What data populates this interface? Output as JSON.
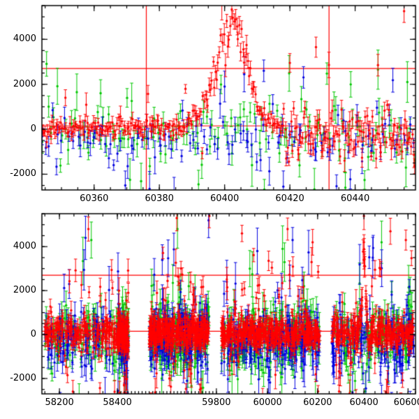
{
  "figure": {
    "background": "#ffffff",
    "axis_color": "#000000",
    "ref_line_color": "#ff0000",
    "tick_label_color": "#000000",
    "description": "Two-panel photometric light curve, flux vs MJD, three bands (red, green, blue) with error bars"
  },
  "chart_data": [
    {
      "type": "scatter",
      "id": "top",
      "x_range": [
        60344,
        60458.5
      ],
      "y_range": [
        -2700,
        5500
      ],
      "x_ticks": [
        60360,
        60380,
        60400,
        60420,
        60440
      ],
      "x_tick_labels": [
        "60360",
        "60380",
        "60400",
        "60420",
        "60440"
      ],
      "y_ticks": [
        -2000,
        0,
        2000,
        4000
      ],
      "y_tick_labels": [
        "-2000",
        "0",
        "2000",
        "4000"
      ],
      "x_minor_step": 5,
      "y_minor_step": 500,
      "h_ref_lines": [
        2700,
        150
      ],
      "v_ref_lines": [
        60376,
        60432
      ],
      "series": [
        {
          "name": "green",
          "color": "#00c800",
          "seed": 101,
          "n": 130,
          "mean": -100,
          "sigma": 650,
          "err_min": 250,
          "err_max": 650,
          "spike_frac": 0.1,
          "spike_min": 1400,
          "spike_max": 2600,
          "spike_pos_frac": 0.5,
          "outliers": [
            [
              60362,
              1600
            ],
            [
              60371,
              -2250
            ],
            [
              60392,
              -2450
            ],
            [
              60447,
              2650
            ],
            [
              60456,
              2100
            ],
            [
              60437,
              -2600
            ]
          ]
        },
        {
          "name": "blue",
          "color": "#0000e0",
          "seed": 202,
          "n": 120,
          "mean": -350,
          "sigma": 620,
          "err_min": 200,
          "err_max": 550,
          "spike_frac": 0.08,
          "spike_min": 1300,
          "spike_max": 2500,
          "spike_pos_frac": 0.5,
          "outliers": [
            [
              60400,
              1900
            ],
            [
              60406,
              2450
            ],
            [
              60412,
              2600
            ],
            [
              60418,
              -2550
            ],
            [
              60377,
              -2650
            ]
          ]
        },
        {
          "name": "red",
          "color": "#ff0000",
          "seed": 303,
          "n": 300,
          "mean": 60,
          "sigma": 230,
          "err_min": 110,
          "err_max": 330,
          "spike_frac": 0.03,
          "spike_min": 800,
          "spike_max": 2000,
          "spike_pos_frac": 0.7,
          "late_x": 60418,
          "late_mean": -250,
          "late_sigma": 650,
          "late_err_extra": 260,
          "flare": {
            "center": 60403,
            "peak": 4700,
            "rise_sigma": 5.5,
            "decay_sigma": 4.2
          },
          "outliers": [
            [
              60420,
              2950
            ],
            [
              60428,
              3650
            ],
            [
              60447,
              2850
            ],
            [
              60455,
              5250
            ]
          ]
        }
      ]
    },
    {
      "type": "scatter",
      "id": "bottom",
      "x_anchors": [
        [
          58140,
          0.0
        ],
        [
          58200,
          0.047
        ],
        [
          58400,
          0.202
        ],
        [
          59800,
          0.467
        ],
        [
          60000,
          0.604
        ],
        [
          60200,
          0.738
        ],
        [
          60400,
          0.862
        ],
        [
          60600,
          0.98
        ],
        [
          60650,
          1.0
        ]
      ],
      "y_range": [
        -2700,
        5500
      ],
      "x_ticks": [
        58200,
        58400,
        59800,
        60000,
        60200,
        60400,
        60600
      ],
      "x_tick_labels": [
        "58200",
        "58400",
        "59800",
        "60000",
        "60200",
        "60400",
        "60600"
      ],
      "y_ticks": [
        -2000,
        0,
        2000,
        4000
      ],
      "y_tick_labels": [
        "-2000",
        "0",
        "2000",
        "4000"
      ],
      "x_minor_step": 50,
      "y_minor_step": 500,
      "h_ref_lines": [
        2700,
        150
      ],
      "v_ref_lines": [],
      "clusters": [
        [
          58150,
          58560
        ],
        [
          58850,
          59700
        ],
        [
          59820,
          60210
        ],
        [
          60260,
          60640
        ]
      ],
      "series": [
        {
          "name": "green",
          "color": "#00c800",
          "seed": 404,
          "cluster_n": [
            150,
            180,
            200,
            140
          ],
          "mean": -150,
          "sigma": 700,
          "err_min": 250,
          "err_max": 700,
          "spike_frac": 0.07,
          "spike_min": 1500,
          "spike_max": 2700,
          "spike_pos_frac": 0.5,
          "outliers": [
            [
              58310,
              4300
            ],
            [
              59250,
              4800
            ],
            [
              60060,
              3900
            ],
            [
              60480,
              4200
            ]
          ]
        },
        {
          "name": "blue",
          "color": "#0000e0",
          "seed": 505,
          "cluster_n": [
            140,
            170,
            190,
            130
          ],
          "mean": -250,
          "sigma": 750,
          "err_min": 250,
          "err_max": 700,
          "spike_frac": 0.07,
          "spike_min": 1500,
          "spike_max": 2800,
          "spike_pos_frac": 0.5,
          "outliers": [
            [
              58290,
              4400
            ],
            [
              59690,
              5200
            ],
            [
              60100,
              4300
            ],
            [
              59960,
              3800
            ],
            [
              60440,
              3500
            ]
          ]
        },
        {
          "name": "red",
          "color": "#ff0000",
          "seed": 606,
          "cluster_n": [
            320,
            380,
            420,
            300
          ],
          "mean": 60,
          "sigma": 380,
          "err_min": 140,
          "err_max": 420,
          "spike_frac": 0.08,
          "spike_min": 900,
          "spike_max": 3200,
          "spike_pos_frac": 0.65,
          "flare": {
            "center": 60400,
            "peak": 3800,
            "rise_sigma": 7,
            "decay_sigma": 7
          },
          "outliers": [
            [
              58300,
              4800
            ],
            [
              59240,
              5300
            ],
            [
              59700,
              5400
            ],
            [
              59900,
              4600
            ],
            [
              60080,
              4800
            ],
            [
              60180,
              4200
            ],
            [
              60400,
              5400
            ],
            [
              60520,
              4700
            ],
            [
              60590,
              4300
            ]
          ]
        }
      ]
    }
  ]
}
